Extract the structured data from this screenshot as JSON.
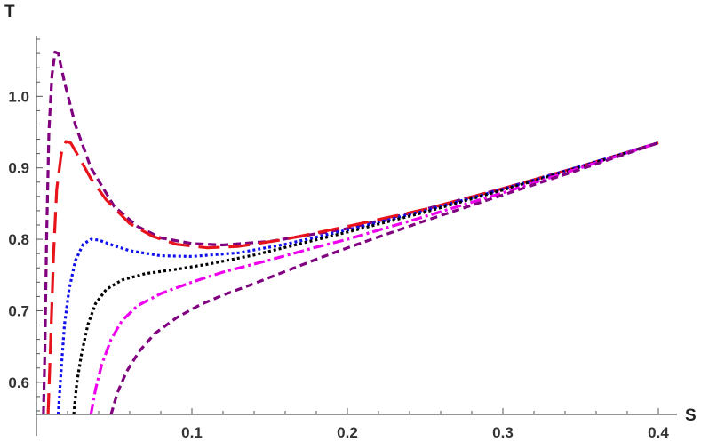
{
  "chart_data": {
    "type": "line",
    "title": "",
    "xlabel": "S",
    "ylabel": "T",
    "xlim": [
      0,
      0.4
    ],
    "ylim": [
      0.555,
      1.085
    ],
    "grid": false,
    "legend": "none",
    "x_ticks": [
      {
        "value": 0.1,
        "label": "0.1"
      },
      {
        "value": 0.2,
        "label": "0.2"
      },
      {
        "value": 0.3,
        "label": "0.3"
      },
      {
        "value": 0.4,
        "label": "0.4"
      }
    ],
    "y_ticks": [
      {
        "value": 0.6,
        "label": "0.6"
      },
      {
        "value": 0.7,
        "label": "0.7"
      },
      {
        "value": 0.8,
        "label": "0.8"
      },
      {
        "value": 0.9,
        "label": "0.9"
      },
      {
        "value": 1.0,
        "label": "1.0"
      }
    ],
    "series": [
      {
        "color": "#800080",
        "dash": "9,5",
        "points": [
          [
            0.0045,
            0.555
          ],
          [
            0.0055,
            0.65
          ],
          [
            0.0065,
            0.8
          ],
          [
            0.008,
            0.95
          ],
          [
            0.01,
            1.03
          ],
          [
            0.012,
            1.062
          ],
          [
            0.014,
            1.06
          ],
          [
            0.018,
            1.02
          ],
          [
            0.025,
            0.96
          ],
          [
            0.035,
            0.9
          ],
          [
            0.05,
            0.846
          ],
          [
            0.065,
            0.818
          ],
          [
            0.08,
            0.802
          ],
          [
            0.1,
            0.794
          ],
          [
            0.12,
            0.792
          ],
          [
            0.15,
            0.797
          ],
          [
            0.2,
            0.815
          ],
          [
            0.25,
            0.842
          ],
          [
            0.3,
            0.871
          ],
          [
            0.35,
            0.902
          ],
          [
            0.4,
            0.935
          ]
        ]
      },
      {
        "color": "#e8141c",
        "dash": "24,10",
        "points": [
          [
            0.0075,
            0.555
          ],
          [
            0.009,
            0.65
          ],
          [
            0.011,
            0.78
          ],
          [
            0.013,
            0.87
          ],
          [
            0.016,
            0.92
          ],
          [
            0.019,
            0.937
          ],
          [
            0.022,
            0.935
          ],
          [
            0.026,
            0.92
          ],
          [
            0.035,
            0.885
          ],
          [
            0.045,
            0.855
          ],
          [
            0.06,
            0.822
          ],
          [
            0.075,
            0.804
          ],
          [
            0.09,
            0.793
          ],
          [
            0.11,
            0.788
          ],
          [
            0.13,
            0.79
          ],
          [
            0.16,
            0.8
          ],
          [
            0.2,
            0.818
          ],
          [
            0.25,
            0.842
          ],
          [
            0.3,
            0.871
          ],
          [
            0.35,
            0.902
          ],
          [
            0.4,
            0.935
          ]
        ]
      },
      {
        "color": "#1010ee",
        "dash": "3,3",
        "points": [
          [
            0.014,
            0.555
          ],
          [
            0.016,
            0.62
          ],
          [
            0.018,
            0.68
          ],
          [
            0.021,
            0.73
          ],
          [
            0.025,
            0.77
          ],
          [
            0.03,
            0.793
          ],
          [
            0.035,
            0.8
          ],
          [
            0.04,
            0.799
          ],
          [
            0.05,
            0.791
          ],
          [
            0.06,
            0.784
          ],
          [
            0.08,
            0.777
          ],
          [
            0.1,
            0.776
          ],
          [
            0.13,
            0.781
          ],
          [
            0.16,
            0.793
          ],
          [
            0.2,
            0.813
          ],
          [
            0.25,
            0.84
          ],
          [
            0.3,
            0.87
          ],
          [
            0.35,
            0.902
          ],
          [
            0.4,
            0.935
          ]
        ]
      },
      {
        "color": "#000000",
        "dash": "3,3",
        "points": [
          [
            0.024,
            0.555
          ],
          [
            0.026,
            0.6
          ],
          [
            0.029,
            0.64
          ],
          [
            0.033,
            0.68
          ],
          [
            0.038,
            0.71
          ],
          [
            0.045,
            0.73
          ],
          [
            0.055,
            0.743
          ],
          [
            0.07,
            0.752
          ],
          [
            0.09,
            0.758
          ],
          [
            0.11,
            0.765
          ],
          [
            0.14,
            0.778
          ],
          [
            0.17,
            0.794
          ],
          [
            0.2,
            0.81
          ],
          [
            0.25,
            0.838
          ],
          [
            0.3,
            0.869
          ],
          [
            0.35,
            0.901
          ],
          [
            0.4,
            0.935
          ]
        ]
      },
      {
        "color": "#ee00ee",
        "dash": "12,4,3,4",
        "points": [
          [
            0.035,
            0.555
          ],
          [
            0.038,
            0.59
          ],
          [
            0.042,
            0.625
          ],
          [
            0.048,
            0.66
          ],
          [
            0.055,
            0.686
          ],
          [
            0.065,
            0.707
          ],
          [
            0.08,
            0.724
          ],
          [
            0.1,
            0.74
          ],
          [
            0.12,
            0.754
          ],
          [
            0.15,
            0.771
          ],
          [
            0.18,
            0.789
          ],
          [
            0.2,
            0.8
          ],
          [
            0.25,
            0.832
          ],
          [
            0.3,
            0.865
          ],
          [
            0.35,
            0.9
          ],
          [
            0.4,
            0.935
          ]
        ]
      },
      {
        "color": "#800080",
        "dash": "8,5",
        "points": [
          [
            0.048,
            0.555
          ],
          [
            0.052,
            0.585
          ],
          [
            0.058,
            0.615
          ],
          [
            0.066,
            0.643
          ],
          [
            0.076,
            0.668
          ],
          [
            0.09,
            0.69
          ],
          [
            0.105,
            0.708
          ],
          [
            0.12,
            0.722
          ],
          [
            0.14,
            0.738
          ],
          [
            0.16,
            0.755
          ],
          [
            0.18,
            0.772
          ],
          [
            0.2,
            0.788
          ],
          [
            0.25,
            0.826
          ],
          [
            0.3,
            0.862
          ],
          [
            0.35,
            0.898
          ],
          [
            0.4,
            0.935
          ]
        ]
      }
    ]
  }
}
